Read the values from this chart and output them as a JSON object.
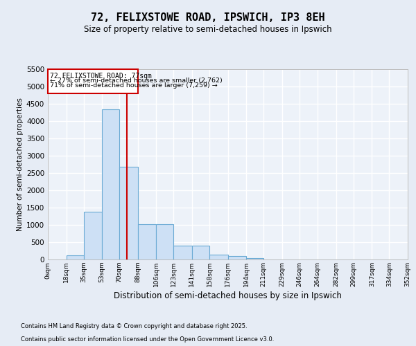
{
  "title_line1": "72, FELIXSTOWE ROAD, IPSWICH, IP3 8EH",
  "title_line2": "Size of property relative to semi-detached houses in Ipswich",
  "xlabel": "Distribution of semi-detached houses by size in Ipswich",
  "ylabel": "Number of semi-detached properties",
  "property_label": "72 FELIXSTOWE ROAD: 77sqm",
  "pct_smaller": 27,
  "count_smaller": 2762,
  "pct_larger": 71,
  "count_larger": 7259,
  "bin_edges": [
    0,
    18,
    35,
    53,
    70,
    88,
    106,
    123,
    141,
    158,
    176,
    194,
    211,
    229,
    246,
    264,
    282,
    299,
    317,
    334,
    352
  ],
  "bin_labels": [
    "0sqm",
    "18sqm",
    "35sqm",
    "53sqm",
    "70sqm",
    "88sqm",
    "106sqm",
    "123sqm",
    "141sqm",
    "158sqm",
    "176sqm",
    "194sqm",
    "211sqm",
    "229sqm",
    "246sqm",
    "264sqm",
    "282sqm",
    "299sqm",
    "317sqm",
    "334sqm",
    "352sqm"
  ],
  "bar_values": [
    5,
    130,
    1380,
    4350,
    2680,
    1020,
    1020,
    400,
    400,
    150,
    100,
    50,
    0,
    0,
    0,
    0,
    0,
    0,
    0,
    0
  ],
  "bar_color": "#cde0f5",
  "bar_edge_color": "#6aaad4",
  "vline_color": "#cc0000",
  "vline_x": 77,
  "ylim": [
    0,
    5500
  ],
  "yticks": [
    0,
    500,
    1000,
    1500,
    2000,
    2500,
    3000,
    3500,
    4000,
    4500,
    5000,
    5500
  ],
  "box_color": "#cc0000",
  "footer_line1": "Contains HM Land Registry data © Crown copyright and database right 2025.",
  "footer_line2": "Contains public sector information licensed under the Open Government Licence v3.0.",
  "bg_color": "#e6ecf5",
  "plot_bg_color": "#edf2f9"
}
